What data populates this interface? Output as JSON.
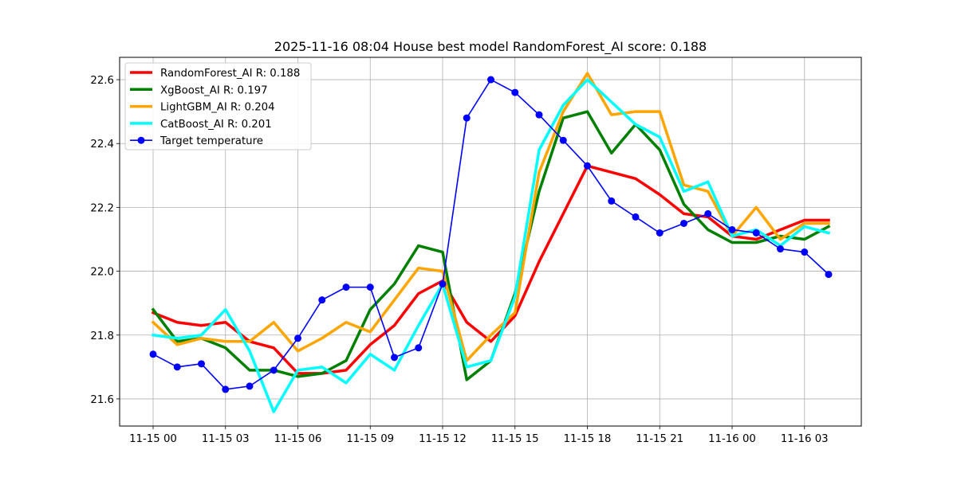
{
  "chart_data": {
    "type": "line",
    "title": "2025-11-16 08:04 House best model RandomForest_AI score: 0.188",
    "xlabel": "",
    "ylabel": "",
    "x_start": "2025-11-15 00:00",
    "x_step_hours": 1,
    "x_ticks": [
      "11-15 00",
      "11-15 03",
      "11-15 06",
      "11-15 09",
      "11-15 12",
      "11-15 15",
      "11-15 18",
      "11-15 21",
      "11-16 00",
      "11-16 03"
    ],
    "y_ticks": [
      "21.6",
      "21.8",
      "22.0",
      "22.2",
      "22.4",
      "22.6"
    ],
    "ylim": [
      21.515,
      22.67
    ],
    "grid": true,
    "legend_position": "upper left",
    "series": [
      {
        "name": "RandomForest_AI R: 0.188",
        "color": "#ff0000",
        "style": "thick",
        "values": [
          21.87,
          21.84,
          21.83,
          21.84,
          21.78,
          21.76,
          21.68,
          21.68,
          21.69,
          21.77,
          21.83,
          21.93,
          21.97,
          21.84,
          21.78,
          21.86,
          22.03,
          22.18,
          22.33,
          22.31,
          22.29,
          22.24,
          22.18,
          22.17,
          22.11,
          22.1,
          22.13,
          22.16,
          22.16
        ]
      },
      {
        "name": "XgBoost_AI R: 0.197",
        "color": "#008000",
        "style": "thick",
        "values": [
          21.88,
          21.78,
          21.79,
          21.76,
          21.69,
          21.69,
          21.67,
          21.68,
          21.72,
          21.88,
          21.96,
          22.08,
          22.06,
          21.66,
          21.72,
          21.93,
          22.25,
          22.48,
          22.5,
          22.37,
          22.46,
          22.38,
          22.21,
          22.13,
          22.09,
          22.09,
          22.11,
          22.1,
          22.14
        ]
      },
      {
        "name": "LightGBM_AI R: 0.204",
        "color": "#ffa500",
        "style": "thick",
        "values": [
          21.84,
          21.77,
          21.79,
          21.78,
          21.78,
          21.84,
          21.75,
          21.79,
          21.84,
          21.81,
          21.91,
          22.01,
          22.0,
          21.72,
          21.8,
          21.87,
          22.31,
          22.5,
          22.62,
          22.49,
          22.5,
          22.5,
          22.27,
          22.25,
          22.11,
          22.2,
          22.1,
          22.15,
          22.15
        ]
      },
      {
        "name": "CatBoost_AI R: 0.201",
        "color": "#00ffff",
        "style": "thick",
        "values": [
          21.8,
          21.79,
          21.8,
          21.88,
          21.75,
          21.56,
          21.69,
          21.7,
          21.65,
          21.74,
          21.69,
          21.83,
          21.96,
          21.7,
          21.72,
          21.92,
          22.38,
          22.52,
          22.6,
          22.53,
          22.46,
          22.42,
          22.25,
          22.28,
          22.11,
          22.13,
          22.08,
          22.14,
          22.12
        ]
      },
      {
        "name": "Target temperature",
        "color": "#0000ff",
        "style": "marker",
        "values": [
          21.74,
          21.7,
          21.71,
          21.63,
          21.64,
          21.69,
          21.79,
          21.91,
          21.95,
          21.95,
          21.73,
          21.76,
          21.96,
          22.48,
          22.6,
          22.56,
          22.49,
          22.41,
          22.33,
          22.22,
          22.17,
          22.12,
          22.15,
          22.18,
          22.13,
          22.12,
          22.07,
          22.06,
          21.99
        ]
      }
    ]
  }
}
